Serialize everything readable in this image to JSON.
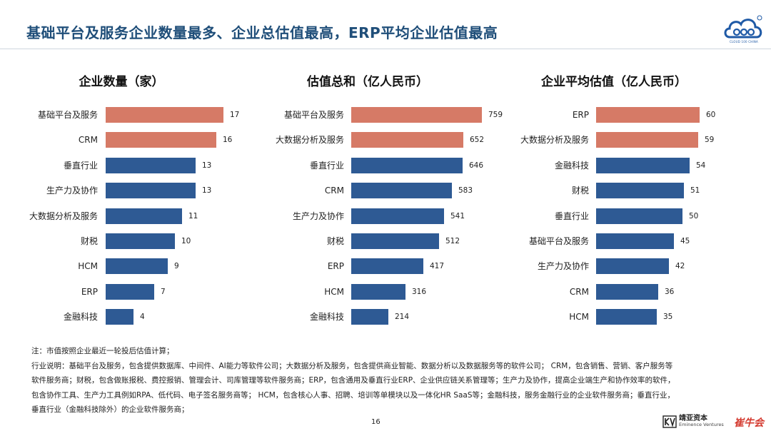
{
  "title": "基础平台及服务企业数量最多、企业总估值最高，ERP平均企业估值最高",
  "logo_text": "CLOUD 100 CHINA",
  "colors": {
    "highlight": "#d67a66",
    "normal": "#2e5a94",
    "title": "#1f4e79"
  },
  "panels": [
    {
      "title": "企业数量（家）",
      "max": 17,
      "items": [
        {
          "label": "基础平台及服务",
          "value": 17,
          "highlight": true
        },
        {
          "label": "CRM",
          "value": 16,
          "highlight": true
        },
        {
          "label": "垂直行业",
          "value": 13,
          "highlight": false
        },
        {
          "label": "生产力及协作",
          "value": 13,
          "highlight": false
        },
        {
          "label": "大数据分析及服务",
          "value": 11,
          "highlight": false
        },
        {
          "label": "财税",
          "value": 10,
          "highlight": false
        },
        {
          "label": "HCM",
          "value": 9,
          "highlight": false
        },
        {
          "label": "ERP",
          "value": 7,
          "highlight": false
        },
        {
          "label": "金融科技",
          "value": 4,
          "highlight": false
        }
      ]
    },
    {
      "title": "估值总和（亿人民币）",
      "max": 759,
      "items": [
        {
          "label": "基础平台及服务",
          "value": 759,
          "highlight": true
        },
        {
          "label": "大数据分析及服务",
          "value": 652,
          "highlight": true
        },
        {
          "label": "垂直行业",
          "value": 646,
          "highlight": false
        },
        {
          "label": "CRM",
          "value": 583,
          "highlight": false
        },
        {
          "label": "生产力及协作",
          "value": 541,
          "highlight": false
        },
        {
          "label": "财税",
          "value": 512,
          "highlight": false
        },
        {
          "label": "ERP",
          "value": 417,
          "highlight": false
        },
        {
          "label": "HCM",
          "value": 316,
          "highlight": false
        },
        {
          "label": "金融科技",
          "value": 214,
          "highlight": false
        }
      ]
    },
    {
      "title": "企业平均估值（亿人民币）",
      "max": 60,
      "items": [
        {
          "label": "ERP",
          "value": 60,
          "highlight": true
        },
        {
          "label": "大数据分析及服务",
          "value": 59,
          "highlight": true
        },
        {
          "label": "金融科技",
          "value": 54,
          "highlight": false
        },
        {
          "label": "财税",
          "value": 51,
          "highlight": false
        },
        {
          "label": "垂直行业",
          "value": 50,
          "highlight": false
        },
        {
          "label": "基础平台及服务",
          "value": 45,
          "highlight": false
        },
        {
          "label": "生产力及协作",
          "value": 42,
          "highlight": false
        },
        {
          "label": "CRM",
          "value": 36,
          "highlight": false
        },
        {
          "label": "HCM",
          "value": 35,
          "highlight": false
        }
      ]
    }
  ],
  "chart_data": [
    {
      "type": "bar",
      "title": "企业数量（家）",
      "categories": [
        "基础平台及服务",
        "CRM",
        "垂直行业",
        "生产力及协作",
        "大数据分析及服务",
        "财税",
        "HCM",
        "ERP",
        "金融科技"
      ],
      "values": [
        17,
        16,
        13,
        13,
        11,
        10,
        9,
        7,
        4
      ]
    },
    {
      "type": "bar",
      "title": "估值总和（亿人民币）",
      "categories": [
        "基础平台及服务",
        "大数据分析及服务",
        "垂直行业",
        "CRM",
        "生产力及协作",
        "财税",
        "ERP",
        "HCM",
        "金融科技"
      ],
      "values": [
        759,
        652,
        646,
        583,
        541,
        512,
        417,
        316,
        214
      ]
    },
    {
      "type": "bar",
      "title": "企业平均估值（亿人民币）",
      "categories": [
        "ERP",
        "大数据分析及服务",
        "金融科技",
        "财税",
        "垂直行业",
        "基础平台及服务",
        "生产力及协作",
        "CRM",
        "HCM"
      ],
      "values": [
        60,
        59,
        54,
        51,
        50,
        45,
        42,
        36,
        35
      ]
    }
  ],
  "notes": [
    "注：市值按照企业最近一轮投后估值计算；",
    "行业说明：基础平台及服务，包含提供数据库、中间件、AI能力等软件公司；大数据分析及服务，包含提供商业智能、数据分析以及数据服务等的软件公司； CRM，包含销售、营销、客户服务等",
    "软件服务商；财税，包含做账报税、费控报销、管理会计、司库管理等软件服务商；ERP，包含通用及垂直行业ERP、企业供应链关系管理等；生产力及协作，提高企业端生产和协作效率的软件，",
    "包含协作工具、生产力工具例如RPA、低代码、电子签名服务商等； HCM，包含核心人事、招聘、培训等单模块以及一体化HR SaaS等；金融科技，服务金融行业的企业软件服务商；垂直行业，",
    "垂直行业（金融科技除外）的企业软件服务商；"
  ],
  "page_number": "16",
  "footer": {
    "brand1_cn": "靖亚资本",
    "brand1_en": "Eminence Ventures",
    "brand2": "崔牛会"
  }
}
